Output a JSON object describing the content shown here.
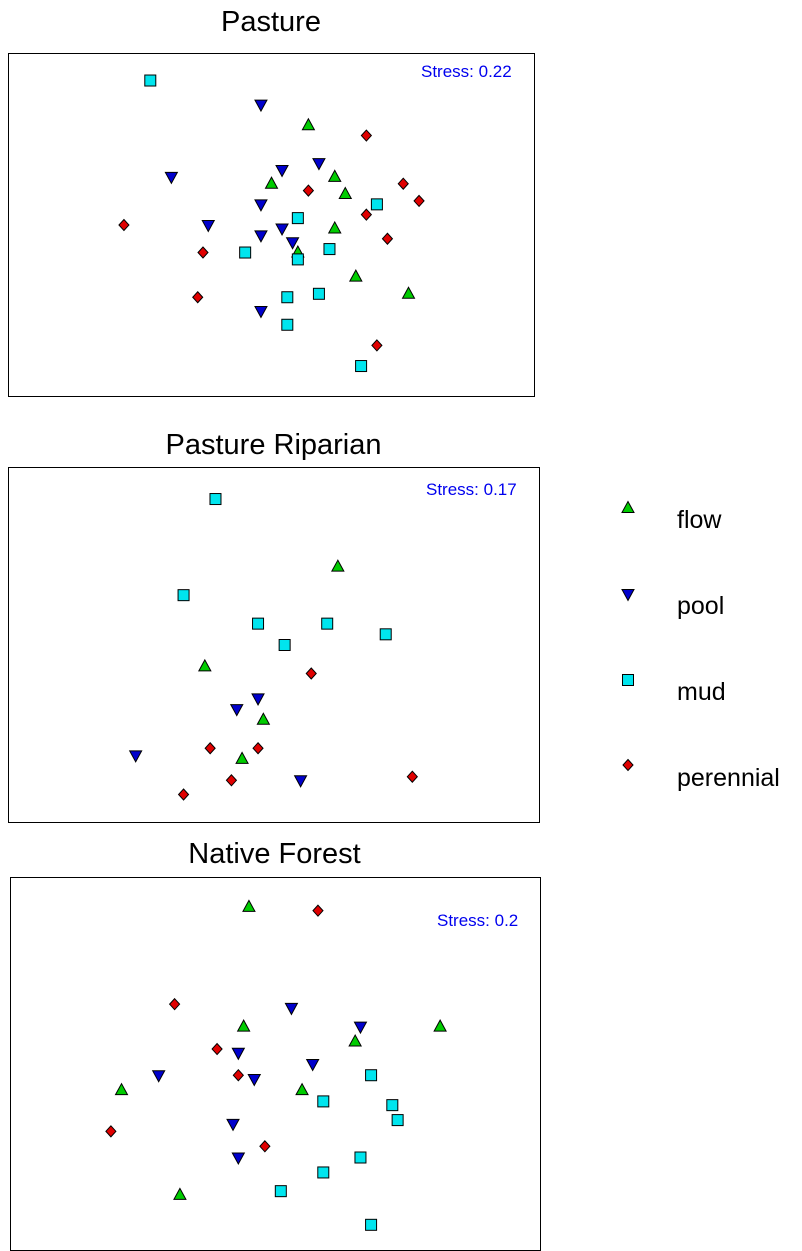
{
  "colors": {
    "flow": "#00cc00",
    "pool": "#0000cc",
    "mud": "#00e5ee",
    "perennial": "#e00000",
    "stress_text": "#0000ee"
  },
  "legend": [
    {
      "label": "flow",
      "marker": "triangle-up",
      "color": "#00cc00"
    },
    {
      "label": "pool",
      "marker": "triangle-down",
      "color": "#0000cc"
    },
    {
      "label": "mud",
      "marker": "square",
      "color": "#00e5ee"
    },
    {
      "label": "perennial",
      "marker": "diamond",
      "color": "#e00000"
    }
  ],
  "chart_data": [
    {
      "type": "scatter",
      "title": "Pasture",
      "stress": "Stress: 0.22",
      "xlim": [
        0,
        100
      ],
      "ylim": [
        0,
        100
      ],
      "series": [
        {
          "name": "flow",
          "points": [
            [
              57,
              79
            ],
            [
              62,
              64
            ],
            [
              50,
              62
            ],
            [
              64,
              59
            ],
            [
              62,
              49
            ],
            [
              55,
              42
            ],
            [
              66,
              35
            ],
            [
              76,
              30
            ]
          ]
        },
        {
          "name": "pool",
          "points": [
            [
              48,
              85
            ],
            [
              59,
              68
            ],
            [
              52,
              66
            ],
            [
              31,
              64
            ],
            [
              48,
              56
            ],
            [
              38,
              50
            ],
            [
              52,
              49
            ],
            [
              48,
              47
            ],
            [
              54,
              45
            ],
            [
              48,
              25
            ]
          ]
        },
        {
          "name": "mud",
          "points": [
            [
              27,
              92
            ],
            [
              70,
              56
            ],
            [
              55,
              52
            ],
            [
              61,
              43
            ],
            [
              45,
              42
            ],
            [
              55,
              40
            ],
            [
              59,
              30
            ],
            [
              53,
              29
            ],
            [
              53,
              21
            ],
            [
              67,
              9
            ]
          ]
        },
        {
          "name": "perennial",
          "points": [
            [
              68,
              76
            ],
            [
              57,
              60
            ],
            [
              75,
              62
            ],
            [
              78,
              57
            ],
            [
              68,
              53
            ],
            [
              72,
              46
            ],
            [
              22,
              50
            ],
            [
              37,
              42
            ],
            [
              36,
              29
            ],
            [
              70,
              15
            ]
          ]
        }
      ]
    },
    {
      "type": "scatter",
      "title": "Pasture Riparian",
      "stress": "Stress: 0.17",
      "xlim": [
        0,
        100
      ],
      "ylim": [
        0,
        100
      ],
      "series": [
        {
          "name": "flow",
          "points": [
            [
              62,
              72
            ],
            [
              37,
              44
            ],
            [
              48,
              29
            ],
            [
              44,
              18
            ]
          ]
        },
        {
          "name": "pool",
          "points": [
            [
              47,
              35
            ],
            [
              43,
              32
            ],
            [
              24,
              19
            ],
            [
              55,
              12
            ]
          ]
        },
        {
          "name": "mud",
          "points": [
            [
              39,
              91
            ],
            [
              33,
              64
            ],
            [
              47,
              56
            ],
            [
              60,
              56
            ],
            [
              71,
              53
            ],
            [
              52,
              50
            ]
          ]
        },
        {
          "name": "perennial",
          "points": [
            [
              57,
              42
            ],
            [
              38,
              21
            ],
            [
              47,
              21
            ],
            [
              76,
              13
            ],
            [
              42,
              12
            ],
            [
              33,
              8
            ]
          ]
        }
      ]
    },
    {
      "type": "scatter",
      "title": "Native Forest",
      "stress": "Stress: 0.2",
      "xlim": [
        0,
        100
      ],
      "ylim": [
        0,
        100
      ],
      "series": [
        {
          "name": "flow",
          "points": [
            [
              45,
              92
            ],
            [
              44,
              60
            ],
            [
              81,
              60
            ],
            [
              65,
              56
            ],
            [
              21,
              43
            ],
            [
              55,
              43
            ],
            [
              32,
              15
            ]
          ]
        },
        {
          "name": "pool",
          "points": [
            [
              53,
              65
            ],
            [
              66,
              60
            ],
            [
              43,
              53
            ],
            [
              57,
              50
            ],
            [
              28,
              47
            ],
            [
              46,
              46
            ],
            [
              42,
              34
            ],
            [
              43,
              25
            ]
          ]
        },
        {
          "name": "mud",
          "points": [
            [
              68,
              47
            ],
            [
              59,
              40
            ],
            [
              72,
              39
            ],
            [
              73,
              35
            ],
            [
              66,
              25
            ],
            [
              59,
              21
            ],
            [
              51,
              16
            ],
            [
              68,
              7
            ]
          ]
        },
        {
          "name": "perennial",
          "points": [
            [
              58,
              91
            ],
            [
              31,
              66
            ],
            [
              39,
              54
            ],
            [
              43,
              47
            ],
            [
              19,
              32
            ],
            [
              48,
              28
            ]
          ]
        }
      ]
    }
  ]
}
